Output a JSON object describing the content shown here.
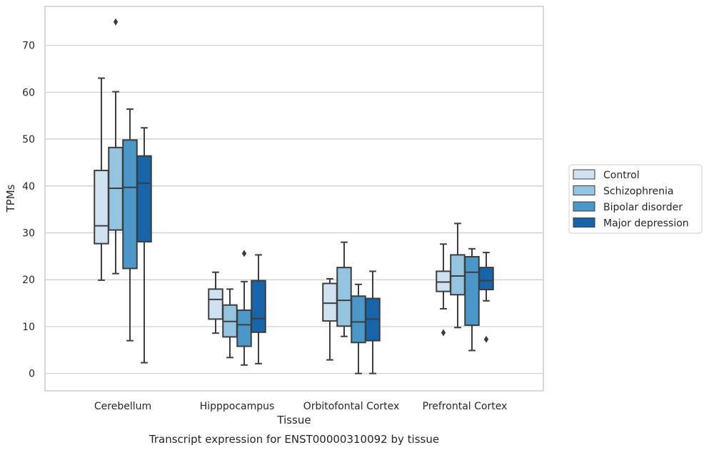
{
  "chart_data": {
    "type": "box",
    "title": "",
    "xlabel": "Tissue",
    "ylabel": "TPMs",
    "caption": "Transcript expression for ENST00000310092 by tissue",
    "ylim": [
      -3.7,
      78.3
    ],
    "yticks": [
      0,
      10,
      20,
      30,
      40,
      50,
      60,
      70
    ],
    "grid": "horizontal",
    "legend_placement": "right",
    "categories": [
      "Cerebellum",
      "Hipppocampus",
      "Orbitofontal Cortex",
      "Prefrontal Cortex"
    ],
    "series": [
      {
        "name": "Control",
        "color": "#d0e1f2",
        "boxes": [
          {
            "whisker_low": 19.9,
            "q1": 27.7,
            "median": 31.5,
            "q3": 43.3,
            "whisker_high": 63.0,
            "outliers": []
          },
          {
            "whisker_low": 8.6,
            "q1": 11.6,
            "median": 15.8,
            "q3": 18.0,
            "whisker_high": 21.6,
            "outliers": []
          },
          {
            "whisker_low": 2.9,
            "q1": 11.2,
            "median": 15.0,
            "q3": 19.2,
            "whisker_high": 20.2,
            "outliers": []
          },
          {
            "whisker_low": 13.8,
            "q1": 17.5,
            "median": 19.5,
            "q3": 21.8,
            "whisker_high": 27.6,
            "outliers": [
              8.7
            ]
          }
        ]
      },
      {
        "name": "Schizophrenia",
        "color": "#94c4df",
        "boxes": [
          {
            "whisker_low": 21.3,
            "q1": 30.6,
            "median": 39.5,
            "q3": 48.2,
            "whisker_high": 60.1,
            "outliers": [
              75.0
            ]
          },
          {
            "whisker_low": 3.4,
            "q1": 7.8,
            "median": 11.1,
            "q3": 14.6,
            "whisker_high": 18.0,
            "outliers": []
          },
          {
            "whisker_low": 7.9,
            "q1": 10.1,
            "median": 15.6,
            "q3": 22.6,
            "whisker_high": 28.0,
            "outliers": []
          },
          {
            "whisker_low": 9.8,
            "q1": 16.8,
            "median": 20.8,
            "q3": 25.3,
            "whisker_high": 32.0,
            "outliers": []
          }
        ]
      },
      {
        "name": "Bipolar disorder",
        "color": "#4a98c9",
        "boxes": [
          {
            "whisker_low": 7.0,
            "q1": 22.4,
            "median": 39.7,
            "q3": 49.8,
            "whisker_high": 56.4,
            "outliers": []
          },
          {
            "whisker_low": 1.8,
            "q1": 5.8,
            "median": 10.4,
            "q3": 13.5,
            "whisker_high": 19.6,
            "outliers": [
              25.6
            ]
          },
          {
            "whisker_low": 0.0,
            "q1": 6.6,
            "median": 11.0,
            "q3": 16.5,
            "whisker_high": 19.0,
            "outliers": []
          },
          {
            "whisker_low": 4.9,
            "q1": 10.3,
            "median": 21.6,
            "q3": 24.9,
            "whisker_high": 26.6,
            "outliers": []
          }
        ]
      },
      {
        "name": "Major depression",
        "color": "#1764ab",
        "boxes": [
          {
            "whisker_low": 2.3,
            "q1": 28.1,
            "median": 40.6,
            "q3": 46.4,
            "whisker_high": 52.4,
            "outliers": []
          },
          {
            "whisker_low": 2.1,
            "q1": 8.8,
            "median": 11.7,
            "q3": 19.8,
            "whisker_high": 25.3,
            "outliers": []
          },
          {
            "whisker_low": 0.0,
            "q1": 7.0,
            "median": 11.6,
            "q3": 16.0,
            "whisker_high": 21.8,
            "outliers": []
          },
          {
            "whisker_low": 15.5,
            "q1": 17.9,
            "median": 19.8,
            "q3": 22.6,
            "whisker_high": 25.8,
            "outliers": [
              7.3
            ]
          }
        ]
      }
    ]
  }
}
